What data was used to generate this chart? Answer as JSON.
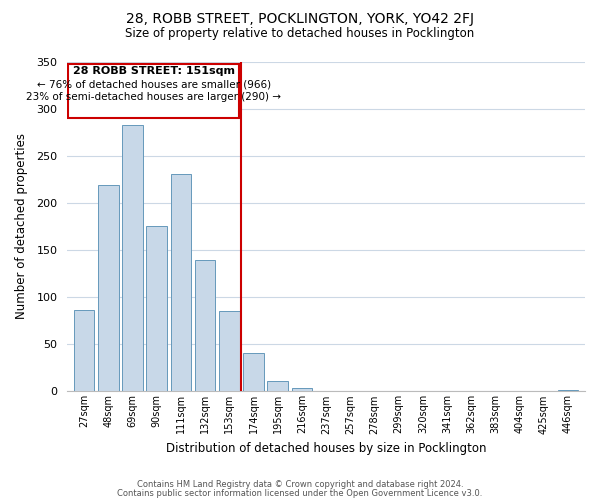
{
  "title1": "28, ROBB STREET, POCKLINGTON, YORK, YO42 2FJ",
  "title2": "Size of property relative to detached houses in Pocklington",
  "xlabel": "Distribution of detached houses by size in Pocklington",
  "ylabel": "Number of detached properties",
  "bar_labels": [
    "27sqm",
    "48sqm",
    "69sqm",
    "90sqm",
    "111sqm",
    "132sqm",
    "153sqm",
    "174sqm",
    "195sqm",
    "216sqm",
    "237sqm",
    "257sqm",
    "278sqm",
    "299sqm",
    "320sqm",
    "341sqm",
    "362sqm",
    "383sqm",
    "404sqm",
    "425sqm",
    "446sqm"
  ],
  "bar_values": [
    86,
    219,
    283,
    175,
    231,
    139,
    85,
    41,
    11,
    4,
    0,
    0,
    0,
    0,
    0,
    0,
    0,
    0,
    0,
    0,
    1
  ],
  "bar_color": "#c8d8e8",
  "bar_edge_color": "#6699bb",
  "vline_x": 6.5,
  "vline_color": "#cc0000",
  "annotation_title": "28 ROBB STREET: 151sqm",
  "annotation_line1": "← 76% of detached houses are smaller (966)",
  "annotation_line2": "23% of semi-detached houses are larger (290) →",
  "box_edge_color": "#cc0000",
  "ylim": [
    0,
    350
  ],
  "yticks": [
    0,
    50,
    100,
    150,
    200,
    250,
    300,
    350
  ],
  "footnote1": "Contains HM Land Registry data © Crown copyright and database right 2024.",
  "footnote2": "Contains public sector information licensed under the Open Government Licence v3.0.",
  "bg_color": "#ffffff",
  "grid_color": "#ccd8e5"
}
